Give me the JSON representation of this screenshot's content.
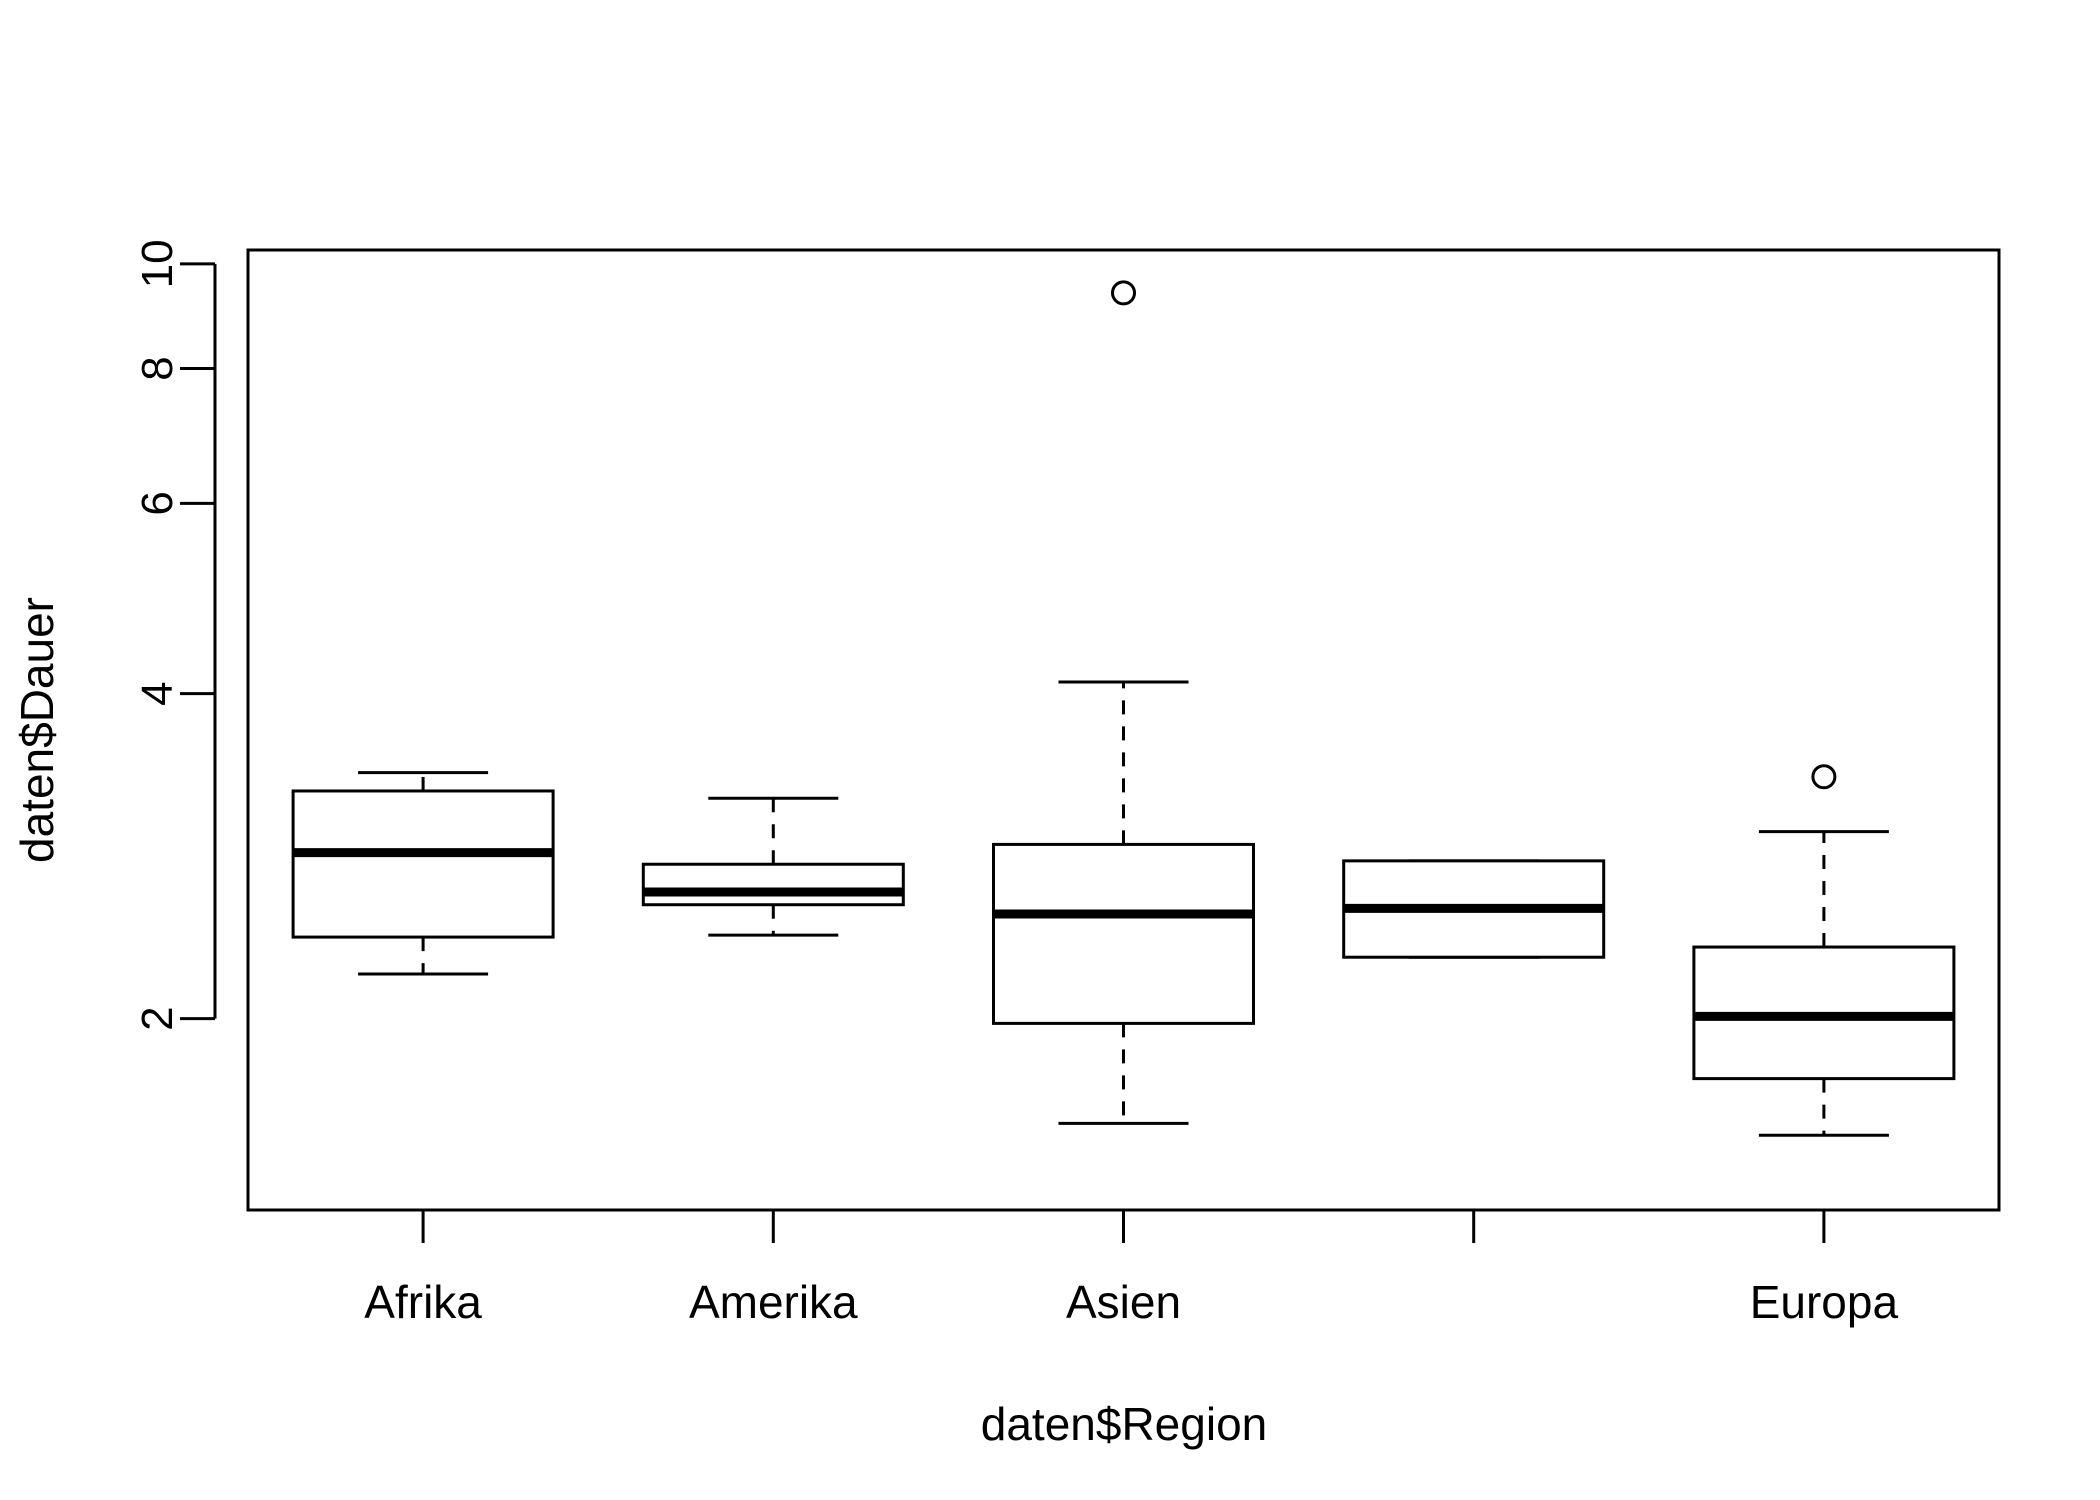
{
  "chart_data": {
    "type": "box",
    "title": "",
    "xlabel": "daten$Region",
    "ylabel": "daten$Dauer",
    "y_scale": "log",
    "ylim": [
      1.33,
      10.3
    ],
    "y_ticks": [
      2,
      4,
      6,
      8,
      10
    ],
    "y_tick_labels": [
      "2",
      "4",
      "6",
      "8",
      "10"
    ],
    "categories": [
      "Afrika",
      "Amerika",
      "Asien",
      "",
      "Europa"
    ],
    "boxes": [
      {
        "min": 2.2,
        "q1": 2.38,
        "median": 2.85,
        "q3": 3.25,
        "max": 3.38,
        "outliers": []
      },
      {
        "min": 2.39,
        "q1": 2.55,
        "median": 2.62,
        "q3": 2.78,
        "max": 3.2,
        "outliers": []
      },
      {
        "min": 1.6,
        "q1": 1.98,
        "median": 2.5,
        "q3": 2.9,
        "max": 4.1,
        "outliers": [
          9.4
        ]
      },
      {
        "min": 2.28,
        "q1": 2.28,
        "median": 2.53,
        "q3": 2.8,
        "max": 2.8,
        "outliers": []
      },
      {
        "min": 1.56,
        "q1": 1.76,
        "median": 2.01,
        "q3": 2.33,
        "max": 2.98,
        "outliers": [
          3.35
        ]
      }
    ]
  }
}
